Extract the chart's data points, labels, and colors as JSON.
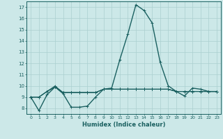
{
  "title": "",
  "xlabel": "Humidex (Indice chaleur)",
  "ylabel": "",
  "bg_color": "#cce8e8",
  "grid_color": "#aacfcf",
  "line_color": "#1a6060",
  "xlim": [
    -0.5,
    23.5
  ],
  "ylim": [
    7.5,
    17.5
  ],
  "yticks": [
    8,
    9,
    10,
    11,
    12,
    13,
    14,
    15,
    16,
    17
  ],
  "xticks": [
    0,
    1,
    2,
    3,
    4,
    5,
    6,
    7,
    8,
    9,
    10,
    11,
    12,
    13,
    14,
    15,
    16,
    17,
    18,
    19,
    20,
    21,
    22,
    23
  ],
  "series": [
    [
      9.0,
      7.8,
      9.2,
      9.9,
      9.3,
      8.1,
      8.1,
      8.2,
      9.0,
      9.7,
      9.8,
      12.3,
      14.6,
      17.2,
      16.7,
      15.6,
      12.1,
      10.0,
      9.5,
      9.1,
      9.8,
      9.7,
      9.5,
      9.5
    ],
    [
      9.0,
      9.0,
      9.5,
      10.0,
      9.4,
      9.4,
      9.4,
      9.4,
      9.4,
      9.7,
      9.7,
      9.7,
      9.7,
      9.7,
      9.7,
      9.7,
      9.7,
      9.7,
      9.5,
      9.5,
      9.5,
      9.5,
      9.5,
      9.5
    ],
    [
      9.0,
      9.0,
      9.5,
      9.9,
      9.4,
      9.4,
      9.4,
      9.4,
      9.4,
      9.7,
      9.7,
      9.7,
      9.7,
      9.7,
      9.7,
      9.7,
      9.7,
      9.7,
      9.5,
      9.5,
      9.5,
      9.5,
      9.5,
      9.5
    ],
    [
      9.0,
      9.0,
      9.5,
      9.9,
      9.4,
      9.4,
      9.4,
      9.4,
      9.4,
      9.7,
      9.7,
      9.7,
      9.7,
      9.7,
      9.7,
      9.7,
      9.7,
      9.7,
      9.5,
      9.5,
      9.5,
      9.5,
      9.5,
      9.5
    ],
    [
      9.0,
      9.0,
      9.5,
      9.9,
      9.4,
      9.4,
      9.4,
      9.4,
      9.4,
      9.7,
      9.7,
      9.7,
      9.7,
      9.7,
      9.7,
      9.7,
      9.7,
      9.7,
      9.5,
      9.5,
      9.5,
      9.5,
      9.5,
      9.5
    ]
  ]
}
